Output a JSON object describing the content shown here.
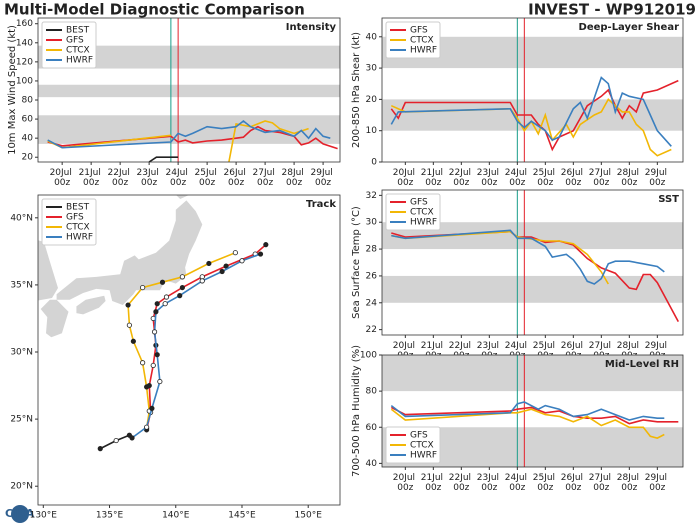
{
  "header": {
    "title": "Multi-Model Diagnostic Comparison",
    "storm": "INVEST - WP912019",
    "logo": "CIRA"
  },
  "chart_data": [
    {
      "type": "line",
      "title": "Intensity",
      "ylabel": "10m Max Wind Speed (kt)",
      "legend": "upper left",
      "xlim": [
        "19Jul 04z",
        "29Jul 14z"
      ],
      "ylim": [
        15,
        166
      ],
      "yticks": [
        20,
        40,
        60,
        80,
        100,
        120,
        140,
        160
      ],
      "xticks": [
        "20Jul 00z",
        "21Jul 00z",
        "22Jul 00z",
        "23Jul 00z",
        "24Jul 00z",
        "25Jul 00z",
        "26Jul 00z",
        "27Jul 00z",
        "28Jul 00z",
        "29Jul 00z"
      ],
      "bands": [
        [
          34,
          64
        ],
        [
          83,
          96
        ],
        [
          113,
          137
        ]
      ],
      "markers": [
        {
          "x": "23Jul 18z",
          "color": "#1a9e8a"
        },
        {
          "x": "24Jul 00z",
          "color": "#e4212b"
        }
      ],
      "series": [
        {
          "name": "BEST",
          "color": "#222222",
          "x": [
            "23Jul 00z",
            "23Jul 06z",
            "24Jul 00z"
          ],
          "values": [
            15,
            20,
            20
          ]
        },
        {
          "name": "GFS",
          "color": "#e4212b",
          "x": [
            "19Jul 12z",
            "20Jul 00z",
            "23Jul 18z",
            "24Jul 00z",
            "24Jul 06z",
            "24Jul 12z",
            "25Jul 00z",
            "25Jul 12z",
            "26Jul 00z",
            "26Jul 06z",
            "26Jul 12z",
            "26Jul 18z",
            "27Jul 00z",
            "27Jul 12z",
            "28Jul 00z",
            "28Jul 06z",
            "28Jul 12z",
            "28Jul 18z",
            "29Jul 00z",
            "29Jul 12z"
          ],
          "values": [
            36,
            32,
            42,
            36,
            38,
            35,
            37,
            38,
            40,
            41,
            48,
            52,
            48,
            46,
            42,
            33,
            35,
            40,
            34,
            29
          ]
        },
        {
          "name": "CTCX",
          "color": "#f2b705",
          "x": [
            "19Jul 12z",
            "20Jul 00z",
            "23Jul 18z",
            "24Jul 18z",
            "25Jul 18z",
            "26Jul 00z",
            "26Jul 12z",
            "27Jul 00z",
            "27Jul 06z",
            "27Jul 12z",
            "28Jul 00z",
            "28Jul 12z"
          ],
          "values": [
            37,
            30,
            43,
            null,
            15,
            55,
            52,
            58,
            56,
            50,
            45,
            50
          ]
        },
        {
          "name": "HWRF",
          "color": "#3a7fbf",
          "x": [
            "19Jul 12z",
            "20Jul 00z",
            "23Jul 18z",
            "24Jul 00z",
            "24Jul 06z",
            "24Jul 12z",
            "25Jul 00z",
            "25Jul 12z",
            "26Jul 00z",
            "26Jul 06z",
            "26Jul 12z",
            "27Jul 00z",
            "27Jul 12z",
            "28Jul 00z",
            "28Jul 06z",
            "28Jul 12z",
            "28Jul 18z",
            "29Jul 00z",
            "29Jul 06z"
          ],
          "values": [
            38,
            30,
            36,
            45,
            42,
            45,
            52,
            50,
            52,
            58,
            52,
            46,
            48,
            42,
            48,
            40,
            50,
            42,
            40
          ]
        }
      ]
    },
    {
      "type": "line",
      "title": "Deep-Layer Shear",
      "ylabel": "200-850 hPa Shear (kt)",
      "legend": "upper left",
      "xlim": [
        "19Jul 04z",
        "29Jul 22z"
      ],
      "ylim": [
        0,
        46
      ],
      "yticks": [
        0,
        10,
        20,
        30,
        40
      ],
      "xticks": [
        "20Jul 00z",
        "21Jul 00z",
        "22Jul 00z",
        "23Jul 00z",
        "24Jul 00z",
        "25Jul 00z",
        "26Jul 00z",
        "27Jul 00z",
        "28Jul 00z",
        "29Jul 00z"
      ],
      "bands": [
        [
          10,
          20
        ],
        [
          30,
          40
        ]
      ],
      "markers": [
        {
          "x": "24Jul 00z",
          "color": "#1a9e8a"
        },
        {
          "x": "24Jul 06z",
          "color": "#e4212b"
        }
      ],
      "series": [
        {
          "name": "GFS",
          "color": "#e4212b",
          "x": [
            "19Jul 12z",
            "19Jul 18z",
            "20Jul 00z",
            "23Jul 18z",
            "24Jul 00z",
            "24Jul 12z",
            "24Jul 18z",
            "25Jul 00z",
            "25Jul 06z",
            "25Jul 12z",
            "26Jul 00z",
            "26Jul 12z",
            "27Jul 00z",
            "27Jul 06z",
            "27Jul 12z",
            "27Jul 18z",
            "28Jul 00z",
            "28Jul 06z",
            "28Jul 12z",
            "29Jul 00z",
            "29Jul 18z"
          ],
          "values": [
            17,
            14,
            19,
            19,
            15,
            15,
            12,
            10,
            4,
            8,
            10,
            18,
            21,
            23,
            18,
            14,
            18,
            16,
            22,
            23,
            26
          ]
        },
        {
          "name": "CTCX",
          "color": "#f2b705",
          "x": [
            "19Jul 12z",
            "20Jul 00z",
            "23Jul 18z",
            "24Jul 00z",
            "24Jul 06z",
            "24Jul 12z",
            "24Jul 18z",
            "25Jul 00z",
            "25Jul 06z",
            "25Jul 18z",
            "26Jul 00z",
            "26Jul 06z",
            "26Jul 18z",
            "27Jul 00z",
            "27Jul 06z",
            "27Jul 12z",
            "27Jul 18z",
            "28Jul 00z",
            "28Jul 06z",
            "28Jul 12z",
            "28Jul 18z",
            "29Jul 00z",
            "29Jul 12z"
          ],
          "values": [
            18,
            16,
            17,
            14,
            10,
            13,
            9,
            15,
            7,
            12,
            8,
            12,
            15,
            16,
            20,
            18,
            16,
            16,
            12,
            10,
            4,
            2,
            4
          ]
        },
        {
          "name": "HWRF",
          "color": "#3a7fbf",
          "x": [
            "19Jul 12z",
            "19Jul 18z",
            "23Jul 18z",
            "24Jul 00z",
            "24Jul 06z",
            "24Jul 12z",
            "25Jul 00z",
            "25Jul 06z",
            "25Jul 12z",
            "26Jul 00z",
            "26Jul 06z",
            "26Jul 12z",
            "27Jul 00z",
            "27Jul 06z",
            "27Jul 12z",
            "27Jul 18z",
            "28Jul 00z",
            "28Jul 12z",
            "28Jul 18z",
            "29Jul 00z",
            "29Jul 12z"
          ],
          "values": [
            12,
            16,
            17,
            13,
            11,
            13,
            10,
            7,
            8,
            17,
            19,
            14,
            27,
            25,
            16,
            22,
            21,
            20,
            15,
            10,
            5
          ]
        }
      ]
    },
    {
      "type": "track",
      "title": "Track",
      "legend": "upper left",
      "xlim": [
        129.6,
        152.4
      ],
      "ylim": [
        18.6,
        41.7
      ],
      "xticks": [
        {
          "value": 130,
          "label": "130°E"
        },
        {
          "value": 135,
          "label": "135°E"
        },
        {
          "value": 140,
          "label": "140°E"
        },
        {
          "value": 145,
          "label": "145°E"
        },
        {
          "value": 150,
          "label": "150°E"
        }
      ],
      "yticks": [
        {
          "value": 20,
          "label": "20°N"
        },
        {
          "value": 25,
          "label": "25°N"
        },
        {
          "value": 30,
          "label": "30°N"
        },
        {
          "value": 35,
          "label": "35°N"
        },
        {
          "value": 40,
          "label": "40°N"
        }
      ],
      "series": [
        {
          "name": "BEST",
          "color": "#222222",
          "x": [
            134.3,
            135.5,
            136.5
          ],
          "values": [
            22.8,
            23.4,
            23.8
          ]
        },
        {
          "name": "GFS",
          "color": "#e4212b",
          "x": [
            137.8,
            138.1,
            138.0,
            138.3,
            138.5,
            138.3,
            138.6,
            139.3,
            140.5,
            142.0,
            143.8,
            146.0,
            146.8
          ],
          "values": [
            24.2,
            25.5,
            27.5,
            29.0,
            30.5,
            32.5,
            33.6,
            34.1,
            34.8,
            35.6,
            36.4,
            37.3,
            38.0
          ]
        },
        {
          "name": "CTCX",
          "color": "#f2b705",
          "x": [
            137.8,
            138.0,
            137.8,
            137.5,
            136.8,
            136.5,
            136.4,
            137.5,
            139.0,
            140.5,
            142.5,
            144.5
          ],
          "values": [
            24.3,
            25.6,
            27.4,
            29.2,
            30.8,
            32.0,
            33.5,
            34.8,
            35.2,
            35.6,
            36.6,
            37.4
          ]
        },
        {
          "name": "HWRF",
          "color": "#3a7fbf",
          "x": [
            136.7,
            137.8,
            138.2,
            138.8,
            138.6,
            138.4,
            138.5,
            139.2,
            140.3,
            142.0,
            143.5,
            145.0,
            146.4
          ],
          "values": [
            23.6,
            24.4,
            25.8,
            27.8,
            29.8,
            31.5,
            33.0,
            33.6,
            34.2,
            35.3,
            36.0,
            36.8,
            37.3
          ]
        }
      ]
    },
    {
      "type": "line",
      "title": "SST",
      "ylabel": "Sea Surface Temp (°C)",
      "legend": "upper left",
      "xlim": [
        "19Jul 04z",
        "29Jul 22z"
      ],
      "ylim": [
        21.6,
        32.4
      ],
      "yticks": [
        22,
        24,
        26,
        28,
        30,
        32
      ],
      "xticks": [
        "20Jul 00z",
        "21Jul 00z",
        "22Jul 00z",
        "23Jul 00z",
        "24Jul 00z",
        "25Jul 00z",
        "26Jul 00z",
        "27Jul 00z",
        "28Jul 00z",
        "29Jul 00z"
      ],
      "bands": [
        [
          24,
          26
        ],
        [
          28,
          30
        ]
      ],
      "markers": [
        {
          "x": "24Jul 00z",
          "color": "#1a9e8a"
        },
        {
          "x": "24Jul 06z",
          "color": "#e4212b"
        }
      ],
      "series": [
        {
          "name": "GFS",
          "color": "#e4212b",
          "x": [
            "19Jul 12z",
            "20Jul 00z",
            "23Jul 18z",
            "24Jul 00z",
            "24Jul 12z",
            "25Jul 00z",
            "25Jul 12z",
            "26Jul 00z",
            "26Jul 12z",
            "27Jul 00z",
            "27Jul 12z",
            "28Jul 00z",
            "28Jul 06z",
            "28Jul 12z",
            "28Jul 18z",
            "29Jul 00z",
            "29Jul 18z"
          ],
          "values": [
            29.2,
            28.9,
            29.3,
            28.9,
            28.9,
            28.5,
            28.6,
            28.3,
            27.3,
            26.6,
            26.2,
            25.1,
            25.0,
            26.1,
            26.1,
            25.5,
            22.6
          ]
        },
        {
          "name": "CTCX",
          "color": "#f2b705",
          "x": [
            "19Jul 12z",
            "20Jul 00z",
            "23Jul 18z",
            "24Jul 00z",
            "25Jul 00z",
            "25Jul 12z",
            "26Jul 00z",
            "26Jul 12z",
            "27Jul 00z",
            "27Jul 06z"
          ],
          "values": [
            29.0,
            28.8,
            29.3,
            28.9,
            28.6,
            28.6,
            28.4,
            27.6,
            26.3,
            25.4
          ]
        },
        {
          "name": "HWRF",
          "color": "#3a7fbf",
          "x": [
            "19Jul 12z",
            "20Jul 00z",
            "23Jul 18z",
            "24Jul 00z",
            "24Jul 12z",
            "25Jul 00z",
            "25Jul 06z",
            "25Jul 18z",
            "26Jul 00z",
            "26Jul 06z",
            "26Jul 12z",
            "26Jul 18z",
            "27Jul 00z",
            "27Jul 06z",
            "27Jul 12z",
            "28Jul 00z",
            "28Jul 12z",
            "29Jul 00z",
            "29Jul 06z"
          ],
          "values": [
            29.0,
            28.8,
            29.4,
            28.8,
            28.8,
            28.2,
            27.4,
            27.6,
            27.2,
            26.5,
            25.6,
            25.4,
            25.8,
            26.9,
            27.1,
            27.1,
            26.9,
            26.7,
            26.3
          ]
        }
      ]
    },
    {
      "type": "line",
      "title": "Mid-Level RH",
      "ylabel": "700-500 hPa Humidity (%)",
      "legend": "lower left",
      "xlim": [
        "19Jul 04z",
        "29Jul 22z"
      ],
      "ylim": [
        38,
        100
      ],
      "yticks": [
        40,
        60,
        80,
        100
      ],
      "xticks": [
        "20Jul 00z",
        "21Jul 00z",
        "22Jul 00z",
        "23Jul 00z",
        "24Jul 00z",
        "25Jul 00z",
        "26Jul 00z",
        "27Jul 00z",
        "28Jul 00z",
        "29Jul 00z"
      ],
      "bands": [
        [
          38,
          60
        ],
        [
          80,
          100
        ]
      ],
      "markers": [
        {
          "x": "24Jul 00z",
          "color": "#1a9e8a"
        },
        {
          "x": "24Jul 06z",
          "color": "#e4212b"
        }
      ],
      "series": [
        {
          "name": "GFS",
          "color": "#e4212b",
          "x": [
            "19Jul 12z",
            "20Jul 00z",
            "23Jul 18z",
            "24Jul 00z",
            "24Jul 12z",
            "25Jul 00z",
            "25Jul 12z",
            "26Jul 00z",
            "26Jul 12z",
            "27Jul 00z",
            "27Jul 12z",
            "28Jul 00z",
            "28Jul 12z",
            "29Jul 00z",
            "29Jul 18z"
          ],
          "values": [
            71,
            67,
            69,
            70,
            71,
            68,
            69,
            66,
            65,
            65,
            66,
            62,
            64,
            63,
            63
          ]
        },
        {
          "name": "CTCX",
          "color": "#f2b705",
          "x": [
            "19Jul 12z",
            "20Jul 00z",
            "23Jul 18z",
            "24Jul 00z",
            "24Jul 12z",
            "25Jul 00z",
            "25Jul 12z",
            "26Jul 00z",
            "26Jul 12z",
            "27Jul 00z",
            "27Jul 12z",
            "28Jul 00z",
            "28Jul 12z",
            "28Jul 18z",
            "29Jul 00z",
            "29Jul 06z"
          ],
          "values": [
            70,
            64,
            68,
            68,
            70,
            67,
            66,
            63,
            66,
            61,
            64,
            60,
            60,
            55,
            54,
            56
          ]
        },
        {
          "name": "HWRF",
          "color": "#3a7fbf",
          "x": [
            "19Jul 12z",
            "20Jul 00z",
            "23Jul 18z",
            "24Jul 00z",
            "24Jul 06z",
            "24Jul 18z",
            "25Jul 00z",
            "25Jul 12z",
            "26Jul 00z",
            "26Jul 12z",
            "27Jul 00z",
            "27Jul 12z",
            "28Jul 00z",
            "28Jul 12z",
            "29Jul 00z",
            "29Jul 06z"
          ],
          "values": [
            72,
            66,
            68,
            73,
            74,
            70,
            72,
            70,
            66,
            67,
            70,
            67,
            64,
            66,
            65,
            65
          ]
        }
      ]
    }
  ]
}
